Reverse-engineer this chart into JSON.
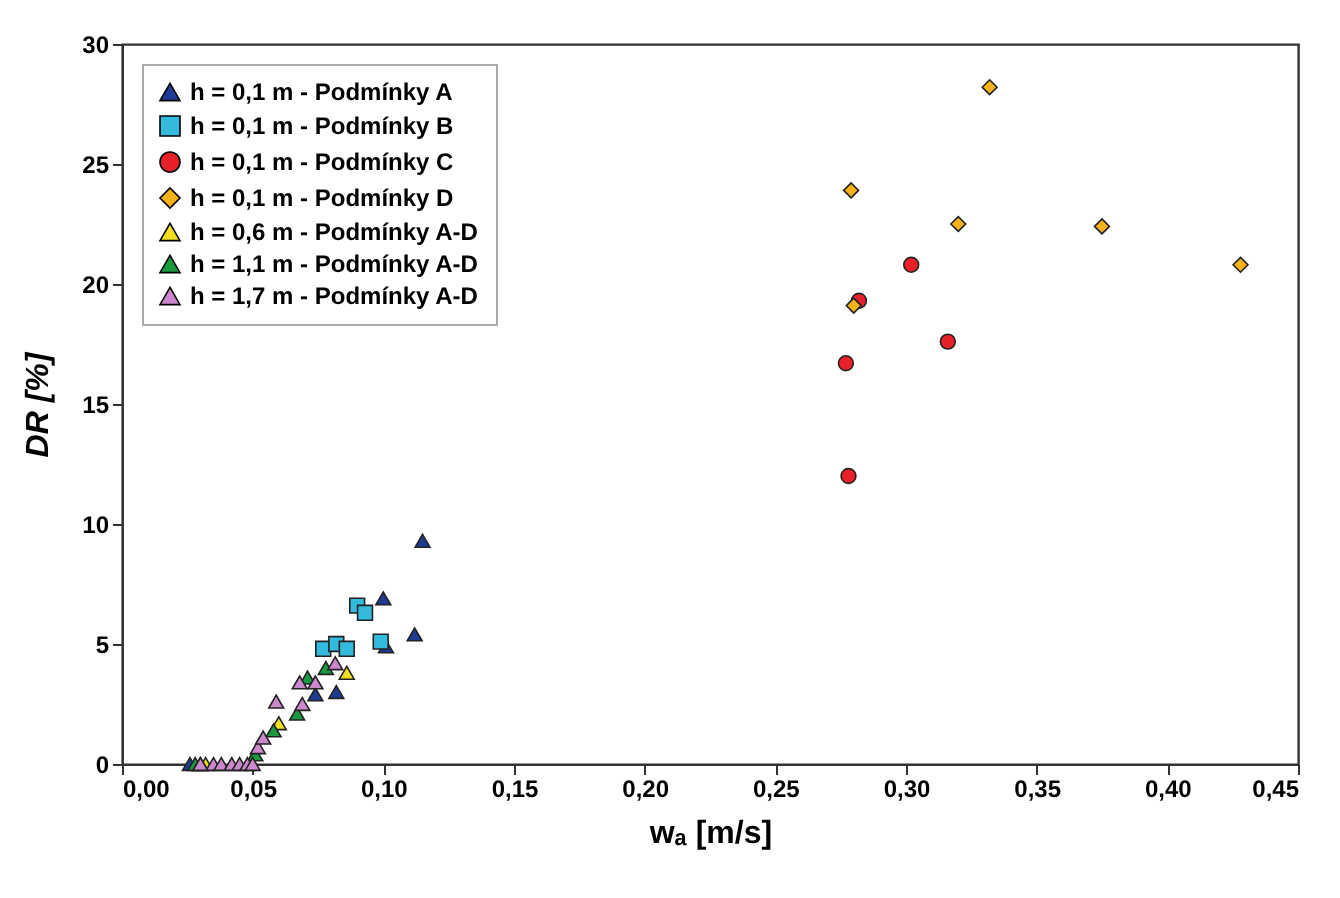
{
  "chart_data": {
    "type": "scatter",
    "xlabel": "wₐ [m/s]",
    "ylabel": "DR [%]",
    "xlim": [
      0,
      0.45
    ],
    "ylim": [
      0,
      30
    ],
    "xticks": [
      {
        "value": 0,
        "label": "0,00"
      },
      {
        "value": 0.05,
        "label": "0,05"
      },
      {
        "value": 0.1,
        "label": "0,10"
      },
      {
        "value": 0.15,
        "label": "0,15"
      },
      {
        "value": 0.2,
        "label": "0,20"
      },
      {
        "value": 0.25,
        "label": "0,25"
      },
      {
        "value": 0.3,
        "label": "0,30"
      },
      {
        "value": 0.35,
        "label": "0,35"
      },
      {
        "value": 0.4,
        "label": "0,40"
      },
      {
        "value": 0.45,
        "label": "0,45"
      }
    ],
    "yticks": [
      0,
      5,
      10,
      15,
      20,
      25,
      30
    ],
    "grid": false,
    "legend": "top left",
    "series": [
      {
        "name": "h = 0,1 m - Podmínky A",
        "color": "#1f3a93",
        "marker": "triangle",
        "x": [
          0.026,
          0.074,
          0.082,
          0.1,
          0.101,
          0.112,
          0.115
        ],
        "values": [
          0,
          2.9,
          3.0,
          6.9,
          4.9,
          5.4,
          9.3
        ]
      },
      {
        "name": "h = 0,1 m - Podmínky B",
        "color": "#33bbdd",
        "marker": "square",
        "x": [
          0.077,
          0.082,
          0.086,
          0.09,
          0.093,
          0.099
        ],
        "values": [
          4.8,
          5.0,
          4.8,
          6.6,
          6.3,
          5.1
        ]
      },
      {
        "name": "h = 0,1 m - Podmínky C",
        "color": "#e8202a",
        "marker": "circle",
        "x": [
          0.277,
          0.278,
          0.282,
          0.302,
          0.316
        ],
        "values": [
          16.7,
          12.0,
          19.3,
          20.8,
          17.6
        ]
      },
      {
        "name": "h = 0,1 m - Podmínky D",
        "color": "#f5b21a",
        "marker": "diamond",
        "x": [
          0.279,
          0.28,
          0.32,
          0.332,
          0.375,
          0.428
        ],
        "values": [
          23.9,
          19.1,
          22.5,
          28.2,
          22.4,
          20.8
        ]
      },
      {
        "name": "h = 0,6 m - Podmínky A-D",
        "color": "#f0e020",
        "marker": "triangle",
        "x": [
          0.032,
          0.06,
          0.086
        ],
        "values": [
          0,
          1.7,
          3.8
        ]
      },
      {
        "name": "h = 1,1 m - Podmínky A-D",
        "color": "#1a9a40",
        "marker": "triangle",
        "x": [
          0.028,
          0.03,
          0.051,
          0.058,
          0.067,
          0.071,
          0.078
        ],
        "values": [
          0,
          0,
          0.4,
          1.4,
          2.1,
          3.6,
          4.0
        ]
      },
      {
        "name": "h = 1,7 m - Podmínky A-D",
        "color": "#cc88cc",
        "marker": "triangle",
        "x": [
          0.03,
          0.035,
          0.038,
          0.042,
          0.045,
          0.048,
          0.05,
          0.052,
          0.054,
          0.059,
          0.068,
          0.069,
          0.074,
          0.0816
        ],
        "values": [
          0,
          0,
          0,
          0,
          0,
          0,
          0,
          0.7,
          1.1,
          2.6,
          3.4,
          2.5,
          3.4,
          4.2
        ]
      }
    ]
  }
}
